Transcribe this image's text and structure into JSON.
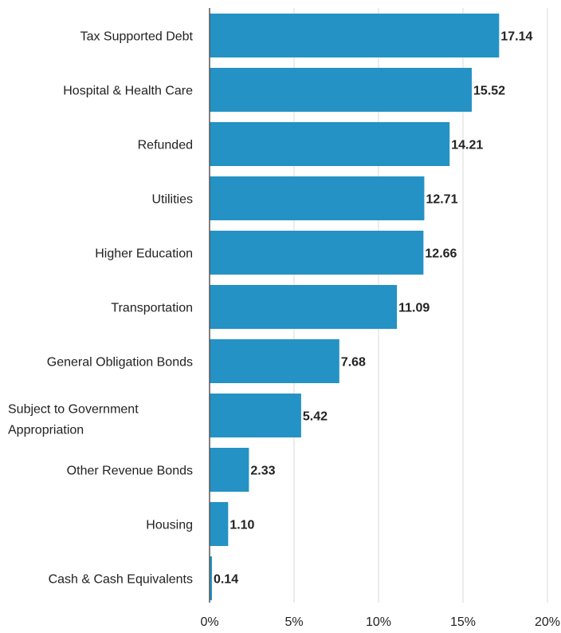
{
  "chart_data": {
    "type": "bar",
    "orientation": "horizontal",
    "categories": [
      "Tax Supported Debt",
      "Hospital & Health Care",
      "Refunded",
      "Utilities",
      "Higher Education",
      "Transportation",
      "General Obligation Bonds",
      "Subject to Government Appropriation",
      "Other Revenue Bonds",
      "Housing",
      "Cash & Cash Equivalents"
    ],
    "category_lines": [
      [
        "Tax Supported Debt"
      ],
      [
        "Hospital & Health Care"
      ],
      [
        "Refunded"
      ],
      [
        "Utilities"
      ],
      [
        "Higher Education"
      ],
      [
        "Transportation"
      ],
      [
        "General Obligation Bonds"
      ],
      [
        "Subject to Government",
        "Appropriation"
      ],
      [
        "Other Revenue Bonds"
      ],
      [
        "Housing"
      ],
      [
        "Cash & Cash Equivalents"
      ]
    ],
    "values": [
      17.14,
      15.52,
      14.21,
      12.71,
      12.66,
      11.09,
      7.68,
      5.42,
      2.33,
      1.1,
      0.14
    ],
    "value_labels": [
      "17.14",
      "15.52",
      "14.21",
      "12.71",
      "12.66",
      "11.09",
      "7.68",
      "5.42",
      "2.33",
      "1.10",
      "0.14"
    ],
    "xlim": [
      0,
      20
    ],
    "xticks": [
      0,
      5,
      10,
      15,
      20
    ],
    "xtick_labels": [
      "0%",
      "5%",
      "10%",
      "15%",
      "20%"
    ],
    "grid": "vertical",
    "legend": "none",
    "bar_color": "#2492c4",
    "axis_color": "#555555",
    "grid_color": "#d9d9d9"
  }
}
